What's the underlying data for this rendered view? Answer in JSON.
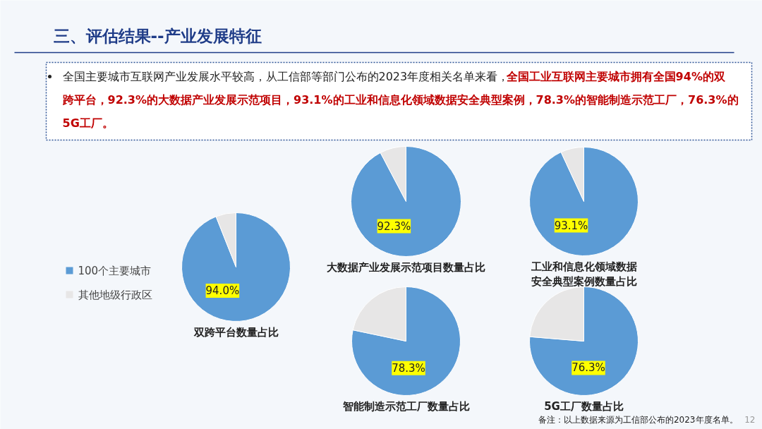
{
  "chart_data": [
    {
      "type": "pie",
      "title": "双跨平台数量占比",
      "categories": [
        "100个主要城市",
        "其他地级行政区"
      ],
      "values": [
        94.0,
        6.0
      ],
      "colors": [
        "#5b9bd5",
        "#e7e6e6"
      ],
      "value_labels": [
        "94.0%",
        null
      ],
      "legend": "left",
      "annotations": [
        "三、评估结果--产业发展特征",
        "全国主要城市互联网产业发展水平较高，从工信部等部门公布的2023年度相关名单来看，",
        "全国工业互联网主要城市拥有全国94%的双跨平台，92.3%的大数据产业发展示范项目，93.1%的工业和信息化领域数据安全典型案例，78.3%的智能制造示范工厂，76.3%的5G工厂。",
        "备注：以上数据来源为工信部公布的2023年度名单。",
        "12"
      ]
    },
    {
      "type": "pie",
      "title": "大数据产业发展示范项目数量占比",
      "categories": [
        null,
        null
      ],
      "values": [
        92.3,
        7.7
      ],
      "colors": [
        "#5b9bd5",
        "#e7e6e6"
      ],
      "value_labels": [
        "92.3%",
        null
      ]
    },
    {
      "type": "pie",
      "title": "工业和信息化领域数据安全典型案例数量占比",
      "categories": [
        null,
        null
      ],
      "values": [
        93.1,
        6.9
      ],
      "colors": [
        "#5b9bd5",
        "#e7e6e6"
      ],
      "value_labels": [
        "93.1%",
        null
      ]
    },
    {
      "type": "pie",
      "title": "智能制造示范工厂数量占比",
      "categories": [
        null,
        null
      ],
      "values": [
        78.3,
        21.7
      ],
      "colors": [
        "#5b9bd5",
        "#e7e6e6"
      ],
      "value_labels": [
        "78.3%",
        null
      ]
    },
    {
      "type": "pie",
      "title": "5G工厂数量占比",
      "categories": [
        null,
        null
      ],
      "values": [
        76.3,
        23.7
      ],
      "colors": [
        "#5b9bd5",
        "#e7e6e6"
      ],
      "value_labels": [
        "76.3%",
        null
      ]
    }
  ]
}
